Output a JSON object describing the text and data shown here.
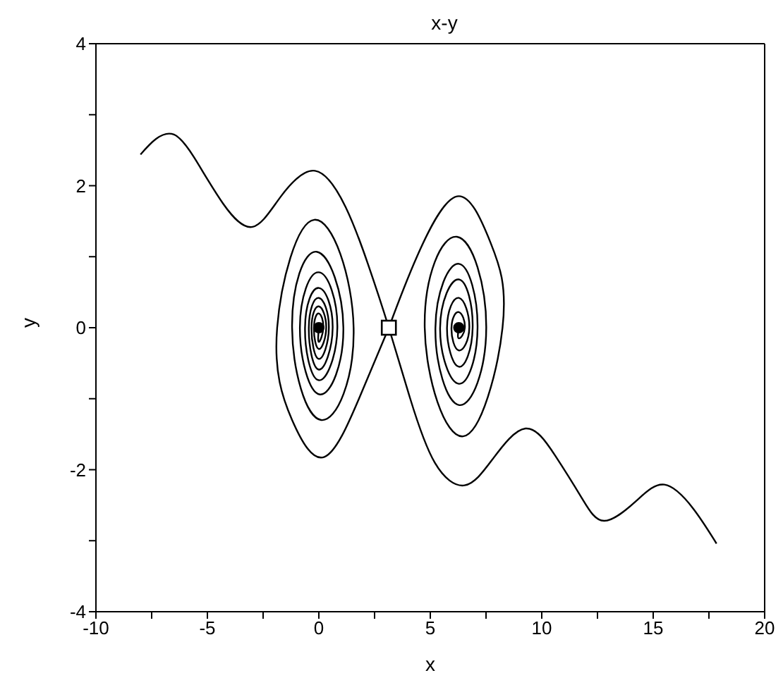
{
  "chart_data": {
    "type": "line",
    "title": "x-y",
    "xlabel": "x",
    "ylabel": "y",
    "xlim": [
      -10,
      20
    ],
    "ylim": [
      -4,
      4
    ],
    "xticks": [
      -10,
      {
        "value": -7.5,
        "label": null
      },
      -5,
      {
        "value": -2.5,
        "label": null
      },
      0,
      {
        "value": 2.5,
        "label": null
      },
      5,
      {
        "value": 7.5,
        "label": null
      },
      10,
      {
        "value": 12.5,
        "label": null
      },
      15,
      {
        "value": 17.5,
        "label": null
      },
      20
    ],
    "yticks": [
      -4,
      {
        "value": -3,
        "label": null
      },
      -2,
      {
        "value": -1,
        "label": null
      },
      0,
      {
        "value": 1,
        "label": null
      },
      2,
      {
        "value": 3,
        "label": null
      },
      4
    ],
    "grid": false,
    "series": [
      {
        "color": "#000000",
        "x": [
          -8,
          -7.3,
          -6.5,
          -5.6,
          -4.3,
          -2.97,
          -1.7,
          -0.17,
          1.2,
          2.2,
          3.14,
          4.1,
          5.2,
          6.54,
          7.8,
          9.27,
          10.6,
          11.8,
          12.8,
          14.2,
          15.5,
          16.8,
          17.84
        ],
        "values": [
          2.44,
          2.66,
          2.72,
          2.4,
          1.75,
          1.42,
          1.85,
          2.21,
          1.7,
          0.9,
          0,
          -1.0,
          -1.9,
          -2.22,
          -1.85,
          -1.42,
          -1.8,
          -2.4,
          -2.72,
          -2.45,
          -2.21,
          -2.55,
          -3.04
        ]
      },
      {
        "color": "#000000",
        "x": [
          3.14,
          1.8,
          0.25,
          -1.2,
          -1.87,
          -0.2,
          1.56,
          0.1,
          -1.2,
          -0.1,
          1.1,
          0.05,
          -0.85,
          0,
          0.83,
          0,
          -0.62,
          0,
          0.62,
          0,
          -0.45,
          0,
          0.45,
          0,
          -0.33,
          0,
          0.33,
          0,
          -0.22,
          0,
          0.2,
          0,
          0
        ],
        "values": [
          0,
          -1.0,
          -1.82,
          -1.3,
          0,
          1.52,
          0,
          -1.3,
          0,
          1.07,
          0,
          -0.94,
          0,
          0.78,
          0,
          -0.74,
          0,
          0.56,
          0,
          -0.59,
          0,
          0.42,
          0,
          -0.44,
          0,
          0.3,
          0,
          -0.3,
          0,
          0.2,
          0,
          -0.2,
          0
        ]
      },
      {
        "color": "#000000",
        "x": [
          3.14,
          4.4,
          6.2,
          7.7,
          8.24,
          6.47,
          4.75,
          6.2,
          7.51,
          6.3,
          5.23,
          6.28,
          7.12,
          6.28,
          5.44,
          6.28,
          6.9,
          6.28,
          5.75,
          6.28,
          6.75,
          6.28,
          5.95,
          6.28,
          6.55,
          6.28,
          6.28
        ],
        "values": [
          0,
          1.0,
          1.85,
          1.2,
          0,
          -1.53,
          0,
          1.28,
          0,
          -1.09,
          0,
          0.9,
          0,
          -0.79,
          0,
          0.68,
          0,
          -0.55,
          0,
          0.42,
          0,
          -0.32,
          0,
          0.22,
          0,
          -0.15,
          0
        ]
      },
      {
        "type": "scatter",
        "marker": "circle",
        "color": "#000000",
        "x": [
          0,
          6.28
        ],
        "values": [
          0,
          0
        ]
      },
      {
        "type": "scatter",
        "marker": "square",
        "color": "#000000",
        "x": [
          3.14
        ],
        "values": [
          0
        ]
      }
    ]
  }
}
